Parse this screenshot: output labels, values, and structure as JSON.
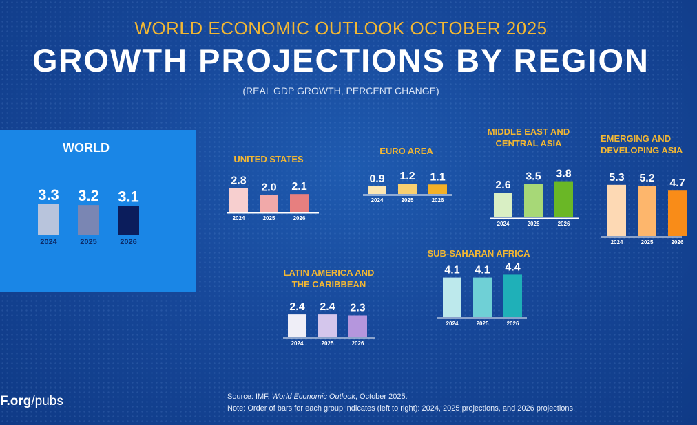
{
  "header": {
    "kicker": "WORLD ECONOMIC OUTLOOK OCTOBER 2025",
    "title": "GROWTH PROJECTIONS BY REGION",
    "subtitle": "(REAL GDP GROWTH, PERCENT CHANGE)"
  },
  "footer": {
    "source_prefix": "Source:  IMF, ",
    "source_italic": "World Economic Outlook",
    "source_suffix": ", October 2025.",
    "note": "Note:  Order of bars for each group indicates (left to right): 2024, 2025 projections, and 2026 projections.",
    "url_bold": "F.org",
    "url_rest": "/pubs"
  },
  "colors": {
    "background": "#17489a",
    "kicker": "#f2b733",
    "world_panel": "#1a86e6"
  },
  "chart_data": [
    {
      "type": "bar",
      "title": "WORLD",
      "categories": [
        "2024",
        "2025",
        "2026"
      ],
      "values": [
        3.3,
        3.2,
        3.1
      ],
      "colors": [
        "#b8c4dc",
        "#7a86b3",
        "#0b1d5c"
      ]
    },
    {
      "type": "bar",
      "title": "UNITED STATES",
      "categories": [
        "2024",
        "2025",
        "2026"
      ],
      "values": [
        2.8,
        2.0,
        2.1
      ],
      "colors": [
        "#f7cfcf",
        "#f1a9a9",
        "#e77f7f"
      ]
    },
    {
      "type": "bar",
      "title": "EURO AREA",
      "categories": [
        "2024",
        "2025",
        "2026"
      ],
      "values": [
        0.9,
        1.2,
        1.1
      ],
      "colors": [
        "#fbe6b3",
        "#f8cf70",
        "#f3b027"
      ]
    },
    {
      "type": "bar",
      "title": "MIDDLE EAST AND\nCENTRAL ASIA",
      "categories": [
        "2024",
        "2025",
        "2026"
      ],
      "values": [
        2.6,
        3.5,
        3.8
      ],
      "colors": [
        "#d9efc4",
        "#a7d877",
        "#6ab726"
      ]
    },
    {
      "type": "bar",
      "title": "EMERGING AND\nDEVELOPING ASIA",
      "categories": [
        "2024",
        "2025",
        "2026"
      ],
      "values": [
        5.3,
        5.2,
        4.7
      ],
      "colors": [
        "#fdd9b4",
        "#fdb66c",
        "#f98c18"
      ]
    },
    {
      "type": "bar",
      "title": "LATIN AMERICA AND\nTHE CARIBBEAN",
      "categories": [
        "2024",
        "2025",
        "2026"
      ],
      "values": [
        2.4,
        2.4,
        2.3
      ],
      "colors": [
        "#efeef7",
        "#d4c6ec",
        "#b596dd"
      ]
    },
    {
      "type": "bar",
      "title": "SUB-SAHARAN AFRICA",
      "categories": [
        "2024",
        "2025",
        "2026"
      ],
      "values": [
        4.1,
        4.1,
        4.4
      ],
      "colors": [
        "#bde9ec",
        "#6fd0d6",
        "#1fb0b8"
      ]
    }
  ]
}
